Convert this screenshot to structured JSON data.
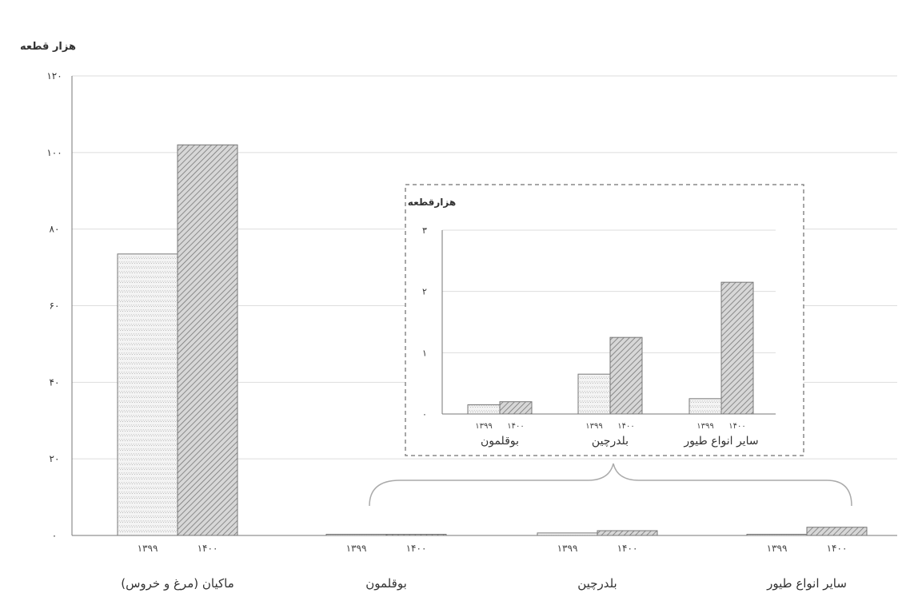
{
  "chart_data": [
    {
      "type": "bar",
      "ylabel": "هزار قطعه",
      "ylim": [
        0,
        120
      ],
      "yticks": [
        0,
        20,
        40,
        60,
        80,
        100,
        120
      ],
      "ytick_labels": [
        "۰",
        "۲۰",
        "۴۰",
        "۶۰",
        "۸۰",
        "۱۰۰",
        "۱۲۰"
      ],
      "categories": [
        "ماکیان (مرغ و خروس)",
        "بوقلمون",
        "بلدرچین",
        "سایر انواع طیور"
      ],
      "series": [
        {
          "name": "۱۳۹۹",
          "values": [
            73.5,
            0.15,
            0.65,
            0.25
          ]
        },
        {
          "name": "۱۴۰۰",
          "values": [
            102,
            0.2,
            1.25,
            2.15
          ]
        }
      ],
      "grid": true,
      "pattern_colors": {
        "1399": "#e9e9e9",
        "1400": "#c4c4c4"
      }
    },
    {
      "type": "bar",
      "ylabel": "هزارقطعه",
      "ylim": [
        0,
        3
      ],
      "yticks": [
        0,
        1,
        2,
        3
      ],
      "ytick_labels": [
        "۰",
        "۱",
        "۲",
        "۳"
      ],
      "categories": [
        "بوقلمون",
        "بلدرچین",
        "سایر انواع طیور"
      ],
      "series": [
        {
          "name": "۱۳۹۹",
          "values": [
            0.15,
            0.65,
            0.25
          ]
        },
        {
          "name": "۱۴۰۰",
          "values": [
            0.2,
            1.25,
            2.15
          ]
        }
      ],
      "grid": true
    }
  ]
}
